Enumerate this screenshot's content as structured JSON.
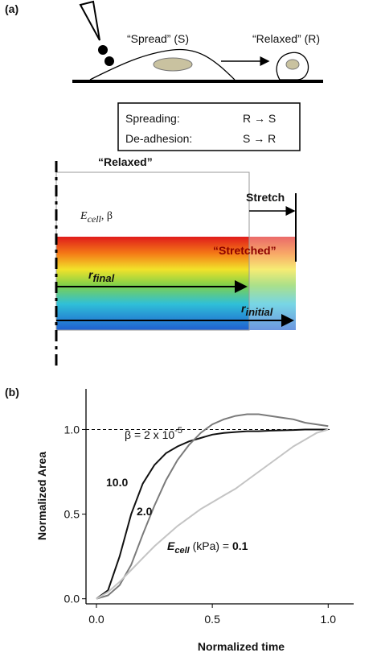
{
  "panel_a": {
    "label": "(a)",
    "spread": "“Spread” (S)",
    "relaxed": "“Relaxed” (R)",
    "box": [
      {
        "term": "Spreading:",
        "rule": "R → S"
      },
      {
        "term": "De-adhesion:",
        "rule": "S → R"
      }
    ],
    "relaxed_label": "“Relaxed”",
    "stretch": "Stretch",
    "stretched": "“Stretched”",
    "params": {
      "main": "E",
      "sub": "cell",
      "rest": ", β"
    },
    "r_final": {
      "main": "r",
      "sub": "final"
    },
    "r_initial": {
      "main": "r",
      "sub": "initial"
    }
  },
  "chart_data": {
    "type": "line",
    "panel_label": "(b)",
    "x_label": "Normalized time",
    "y_label": "Normalized Area",
    "x": [
      0,
      0.05,
      0.1,
      0.15,
      0.2,
      0.25,
      0.3,
      0.35,
      0.4,
      0.45,
      0.5,
      0.55,
      0.6,
      0.65,
      0.7,
      0.75,
      0.8,
      0.85,
      0.9,
      0.95,
      1.0
    ],
    "series": [
      {
        "name": "10.0",
        "color": "#111111",
        "values": [
          0,
          0.05,
          0.25,
          0.5,
          0.68,
          0.79,
          0.86,
          0.9,
          0.93,
          0.95,
          0.97,
          0.98,
          0.985,
          0.99,
          0.99,
          0.993,
          0.995,
          0.997,
          1.0,
          1.0,
          1.0
        ]
      },
      {
        "name": "2.0",
        "color": "#7a7a7a",
        "values": [
          0,
          0.02,
          0.08,
          0.2,
          0.38,
          0.55,
          0.7,
          0.82,
          0.91,
          0.98,
          1.03,
          1.06,
          1.08,
          1.09,
          1.09,
          1.08,
          1.07,
          1.06,
          1.04,
          1.03,
          1.02
        ]
      },
      {
        "name": "0.1",
        "color": "#c4c4c4",
        "values": [
          0,
          0.04,
          0.1,
          0.17,
          0.24,
          0.31,
          0.37,
          0.43,
          0.48,
          0.53,
          0.57,
          0.61,
          0.65,
          0.7,
          0.75,
          0.8,
          0.85,
          0.9,
          0.94,
          0.98,
          1.0
        ]
      }
    ],
    "legend_prefix": {
      "main": "E",
      "sub": "cell",
      "rest": " (kPa) = "
    },
    "hline": 1.0,
    "hline_label": {
      "main": "β = 2 x 10",
      "sup": "-5"
    },
    "xlim": [
      -0.045,
      1.11
    ],
    "ylim": [
      -0.03,
      1.24
    ],
    "xticks": [
      {
        "value": 0,
        "label": "0.0"
      },
      {
        "value": 0.5,
        "label": "0.5"
      },
      {
        "value": 1.0,
        "label": "1.0"
      }
    ],
    "yticks": [
      {
        "value": 0,
        "label": "0.0"
      },
      {
        "value": 0.5,
        "label": "0.5"
      },
      {
        "value": 1.0,
        "label": "1.0"
      }
    ]
  }
}
